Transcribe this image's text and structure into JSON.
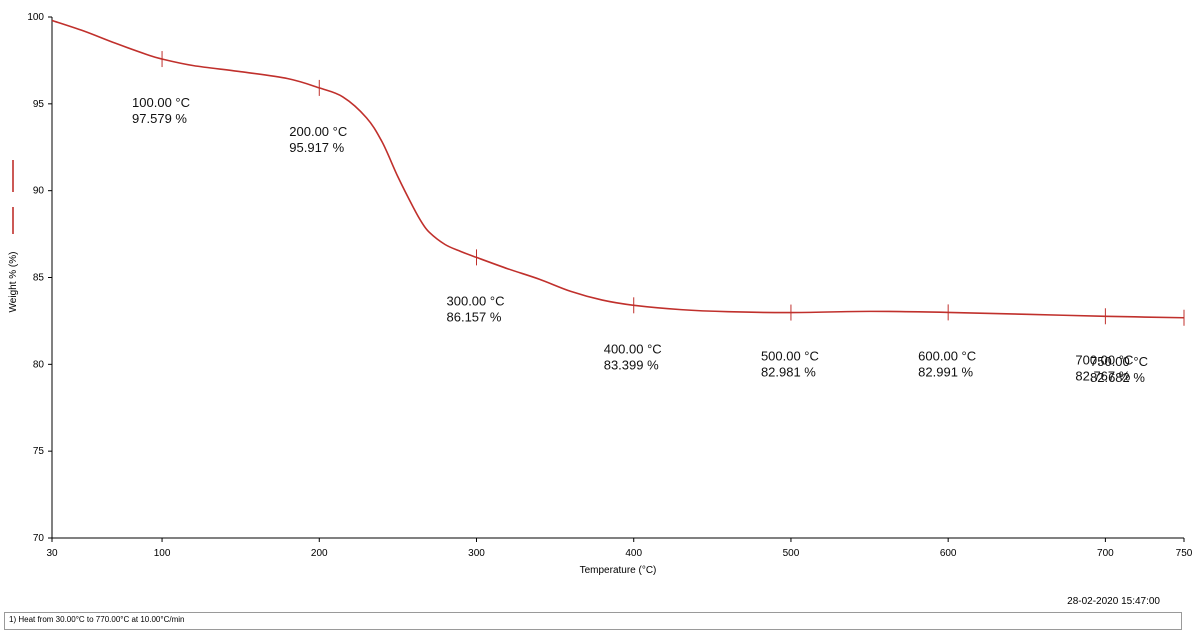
{
  "timestamp": "28-02-2020 15:47:00",
  "method": "1)  Heat from 30.00°C to 770.00°C at 10.00°C/min",
  "chart_data": {
    "type": "line",
    "title": "",
    "xlabel": "Temperature (°C)",
    "ylabel": "Weight % (%)",
    "xlim": [
      30,
      750
    ],
    "ylim": [
      70,
      100
    ],
    "xticks": [
      30,
      100,
      200,
      300,
      400,
      500,
      600,
      700,
      750
    ],
    "yticks": [
      70,
      75,
      80,
      85,
      90,
      95,
      100
    ],
    "grid": false,
    "colors": {
      "series": "#c0302c",
      "axis": "#000000"
    },
    "series": [
      {
        "x": [
          30,
          50,
          70,
          90,
          100,
          120,
          150,
          180,
          200,
          215,
          230,
          240,
          250,
          260,
          265,
          270,
          280,
          290,
          300,
          320,
          340,
          360,
          380,
          400,
          430,
          460,
          500,
          550,
          600,
          650,
          700,
          750
        ],
        "y": [
          99.8,
          99.2,
          98.5,
          97.85,
          97.579,
          97.2,
          96.85,
          96.45,
          95.917,
          95.4,
          94.2,
          92.8,
          90.8,
          89.0,
          88.2,
          87.6,
          86.9,
          86.5,
          86.157,
          85.5,
          84.9,
          84.2,
          83.7,
          83.399,
          83.15,
          83.03,
          82.981,
          83.05,
          82.991,
          82.88,
          82.767,
          82.682
        ]
      }
    ],
    "markers": [
      {
        "x": 100,
        "y": 97.579,
        "temp_label": "100.00 °C",
        "weight_label": "97.579 %"
      },
      {
        "x": 200,
        "y": 95.917,
        "temp_label": "200.00 °C",
        "weight_label": "95.917 %"
      },
      {
        "x": 300,
        "y": 86.157,
        "temp_label": "300.00 °C",
        "weight_label": "86.157 %"
      },
      {
        "x": 400,
        "y": 83.399,
        "temp_label": "400.00 °C",
        "weight_label": "83.399 %"
      },
      {
        "x": 500,
        "y": 82.981,
        "temp_label": "500.00 °C",
        "weight_label": "82.981 %"
      },
      {
        "x": 600,
        "y": 82.991,
        "temp_label": "600.00 °C",
        "weight_label": "82.991 %"
      },
      {
        "x": 700,
        "y": 82.767,
        "temp_label": "700.00 °C",
        "weight_label": "82.767 %"
      },
      {
        "x": 750,
        "y": 82.682,
        "temp_label": "750.00 °C",
        "weight_label": "82.682 %"
      }
    ]
  }
}
